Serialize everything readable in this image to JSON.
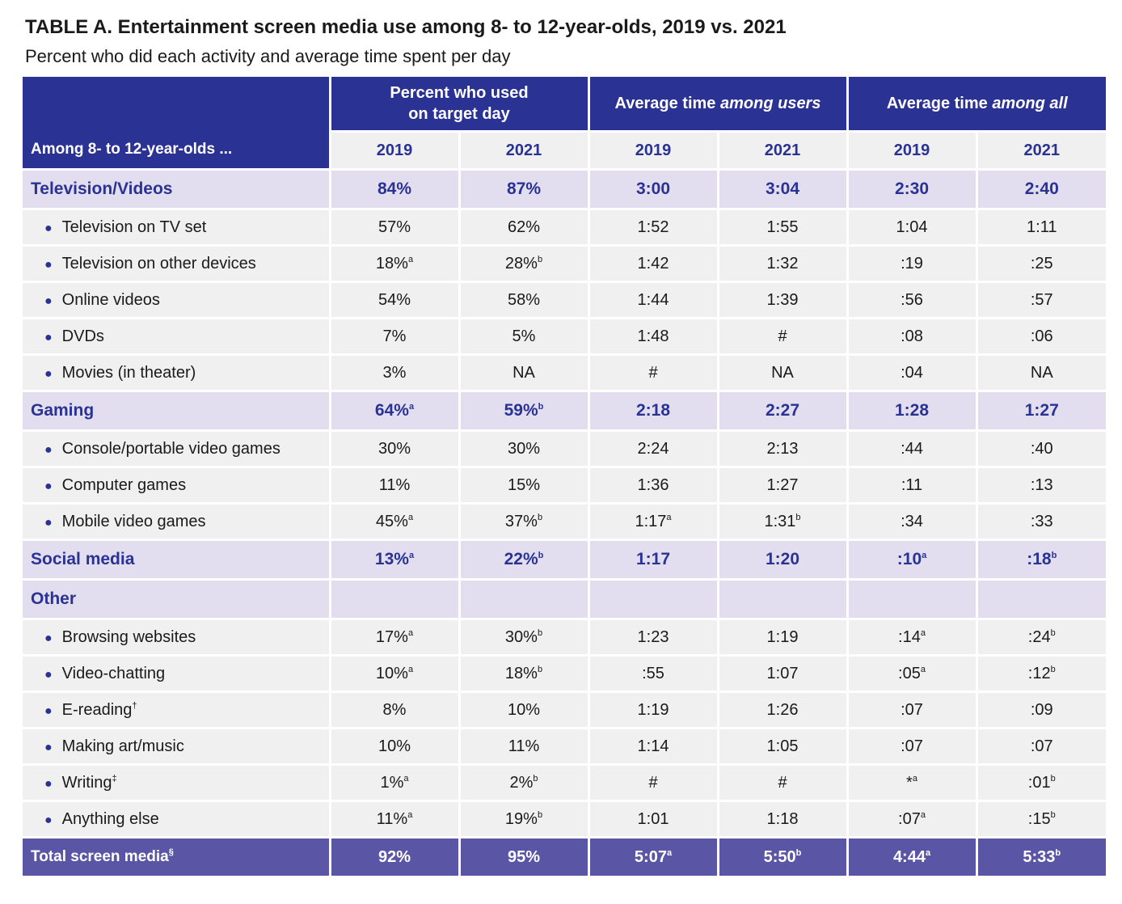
{
  "title": "TABLE A. Entertainment screen media use among 8- to 12-year-olds, 2019 vs. 2021",
  "subtitle": "Percent who did each activity and average time spent per day",
  "header": {
    "group1": "Percent who used on target day",
    "group2_prefix": "Average time ",
    "group2_italic": "among users",
    "group3_prefix": "Average time ",
    "group3_italic": "among all",
    "row_label": "Among 8- to 12-year-olds ...",
    "years": [
      "2019",
      "2021",
      "2019",
      "2021",
      "2019",
      "2021"
    ]
  },
  "rows": [
    {
      "type": "cat",
      "label": "Television/Videos",
      "cells": [
        [
          "84%",
          ""
        ],
        [
          "87%",
          ""
        ],
        [
          "3:00",
          ""
        ],
        [
          "3:04",
          ""
        ],
        [
          "2:30",
          ""
        ],
        [
          "2:40",
          ""
        ]
      ]
    },
    {
      "type": "sub",
      "label": "Television on TV set",
      "cells": [
        [
          "57%",
          ""
        ],
        [
          "62%",
          ""
        ],
        [
          "1:52",
          ""
        ],
        [
          "1:55",
          ""
        ],
        [
          "1:04",
          ""
        ],
        [
          "1:11",
          ""
        ]
      ]
    },
    {
      "type": "sub",
      "label": "Television on other devices",
      "cells": [
        [
          "18%",
          "a"
        ],
        [
          "28%",
          "b"
        ],
        [
          "1:42",
          ""
        ],
        [
          "1:32",
          ""
        ],
        [
          ":19",
          ""
        ],
        [
          ":25",
          ""
        ]
      ]
    },
    {
      "type": "sub",
      "label": "Online videos",
      "cells": [
        [
          "54%",
          ""
        ],
        [
          "58%",
          ""
        ],
        [
          "1:44",
          ""
        ],
        [
          "1:39",
          ""
        ],
        [
          ":56",
          ""
        ],
        [
          ":57",
          ""
        ]
      ]
    },
    {
      "type": "sub",
      "label": "DVDs",
      "cells": [
        [
          "7%",
          ""
        ],
        [
          "5%",
          ""
        ],
        [
          "1:48",
          ""
        ],
        [
          "#",
          ""
        ],
        [
          ":08",
          ""
        ],
        [
          ":06",
          ""
        ]
      ]
    },
    {
      "type": "sub",
      "label": "Movies (in theater)",
      "cells": [
        [
          "3%",
          ""
        ],
        [
          "NA",
          ""
        ],
        [
          "#",
          ""
        ],
        [
          "NA",
          ""
        ],
        [
          ":04",
          ""
        ],
        [
          "NA",
          ""
        ]
      ]
    },
    {
      "type": "cat",
      "label": "Gaming",
      "cells": [
        [
          "64%",
          "a"
        ],
        [
          "59%",
          "b"
        ],
        [
          "2:18",
          ""
        ],
        [
          "2:27",
          ""
        ],
        [
          "1:28",
          ""
        ],
        [
          "1:27",
          ""
        ]
      ]
    },
    {
      "type": "sub",
      "label": "Console/portable video games",
      "cells": [
        [
          "30%",
          ""
        ],
        [
          "30%",
          ""
        ],
        [
          "2:24",
          ""
        ],
        [
          "2:13",
          ""
        ],
        [
          ":44",
          ""
        ],
        [
          ":40",
          ""
        ]
      ]
    },
    {
      "type": "sub",
      "label": "Computer games",
      "cells": [
        [
          "11%",
          ""
        ],
        [
          "15%",
          ""
        ],
        [
          "1:36",
          ""
        ],
        [
          "1:27",
          ""
        ],
        [
          ":11",
          ""
        ],
        [
          ":13",
          ""
        ]
      ]
    },
    {
      "type": "sub",
      "label": "Mobile video games",
      "cells": [
        [
          "45%",
          "a"
        ],
        [
          "37%",
          "b"
        ],
        [
          "1:17",
          "a"
        ],
        [
          "1:31",
          "b"
        ],
        [
          ":34",
          ""
        ],
        [
          ":33",
          ""
        ]
      ]
    },
    {
      "type": "cat",
      "label": "Social media",
      "cells": [
        [
          "13%",
          "a"
        ],
        [
          "22%",
          "b"
        ],
        [
          "1:17",
          ""
        ],
        [
          "1:20",
          ""
        ],
        [
          ":10",
          "a"
        ],
        [
          ":18",
          "b"
        ]
      ]
    },
    {
      "type": "cat",
      "label": "Other",
      "cells": [
        [
          "",
          ""
        ],
        [
          "",
          ""
        ],
        [
          "",
          ""
        ],
        [
          "",
          ""
        ],
        [
          "",
          ""
        ],
        [
          "",
          ""
        ]
      ]
    },
    {
      "type": "sub",
      "label": "Browsing websites",
      "cells": [
        [
          "17%",
          "a"
        ],
        [
          "30%",
          "b"
        ],
        [
          "1:23",
          ""
        ],
        [
          "1:19",
          ""
        ],
        [
          ":14",
          "a"
        ],
        [
          ":24",
          "b"
        ]
      ]
    },
    {
      "type": "sub",
      "label": "Video-chatting",
      "cells": [
        [
          "10%",
          "a"
        ],
        [
          "18%",
          "b"
        ],
        [
          ":55",
          ""
        ],
        [
          "1:07",
          ""
        ],
        [
          ":05",
          "a"
        ],
        [
          ":12",
          "b"
        ]
      ]
    },
    {
      "type": "sub",
      "label": "E-reading",
      "label_sup": "†",
      "cells": [
        [
          "8%",
          ""
        ],
        [
          "10%",
          ""
        ],
        [
          "1:19",
          ""
        ],
        [
          "1:26",
          ""
        ],
        [
          ":07",
          ""
        ],
        [
          ":09",
          ""
        ]
      ]
    },
    {
      "type": "sub",
      "label": "Making art/music",
      "cells": [
        [
          "10%",
          ""
        ],
        [
          "11%",
          ""
        ],
        [
          "1:14",
          ""
        ],
        [
          "1:05",
          ""
        ],
        [
          ":07",
          ""
        ],
        [
          ":07",
          ""
        ]
      ]
    },
    {
      "type": "sub",
      "label": "Writing",
      "label_sup": "‡",
      "cells": [
        [
          "1%",
          "a"
        ],
        [
          "2%",
          "b"
        ],
        [
          "#",
          ""
        ],
        [
          "#",
          ""
        ],
        [
          "*",
          "a"
        ],
        [
          ":01",
          "b"
        ]
      ]
    },
    {
      "type": "sub",
      "label": "Anything else",
      "cells": [
        [
          "11%",
          "a"
        ],
        [
          "19%",
          "b"
        ],
        [
          "1:01",
          ""
        ],
        [
          "1:18",
          ""
        ],
        [
          ":07",
          "a"
        ],
        [
          ":15",
          "b"
        ]
      ]
    },
    {
      "type": "total",
      "label": "Total screen media",
      "label_sup": "§",
      "cells": [
        [
          "92%",
          ""
        ],
        [
          "95%",
          ""
        ],
        [
          "5:07",
          "a"
        ],
        [
          "5:50",
          "b"
        ],
        [
          "4:44",
          "a"
        ],
        [
          "5:33",
          "b"
        ]
      ]
    }
  ],
  "colors": {
    "header_blue": "#2a3293",
    "category_bg": "#e2def0",
    "row_bg": "#f0f0f0",
    "total_bg": "#5b55a6"
  }
}
